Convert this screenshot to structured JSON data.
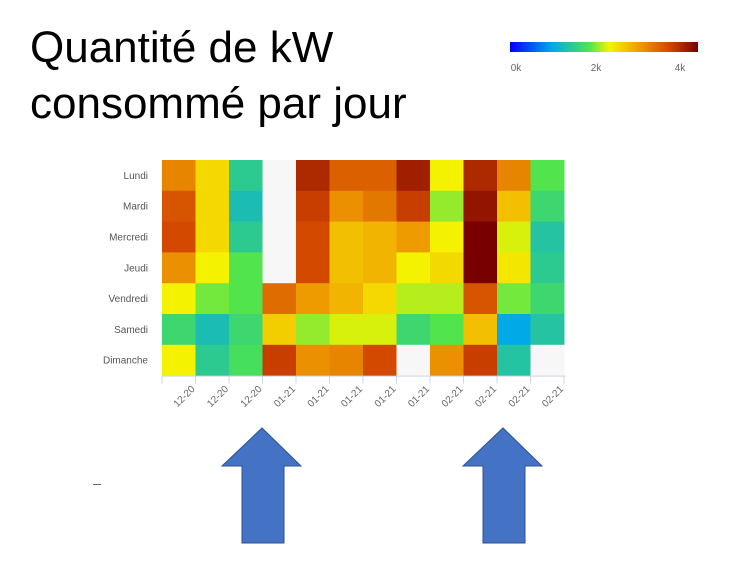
{
  "title": {
    "line1": "Quantité de kW",
    "line2": "consommé par jour"
  },
  "legend": {
    "labels": [
      "0k",
      "2k",
      "4k"
    ],
    "min": 0,
    "max": 4500
  },
  "colors": {
    "arrow_fill": "#4472c4",
    "arrow_stroke": "#2f528f",
    "empty_cell": "#f7f7f7"
  },
  "chart_data": {
    "type": "heatmap",
    "title": "Quantité de kW consommé par jour",
    "rows": [
      "Lundi",
      "Mardi",
      "Mercredi",
      "Jeudi",
      "Vendredi",
      "Samedi",
      "Dimanche"
    ],
    "columns": [
      "12-20",
      "12-20",
      "12-20",
      "01-21",
      "01-21",
      "01-21",
      "01-21",
      "01-21",
      "02-21",
      "02-21",
      "02-21",
      "02-21"
    ],
    "unit": "kW",
    "color_range": [
      0,
      4500
    ],
    "values": [
      [
        3300,
        2600,
        1500,
        null,
        4100,
        3600,
        3600,
        4200,
        2400,
        4100,
        3300,
        1900
      ],
      [
        3700,
        2600,
        1300,
        null,
        3900,
        3200,
        3400,
        3900,
        2100,
        4300,
        2800,
        1700
      ],
      [
        3800,
        2600,
        1500,
        null,
        3800,
        2800,
        2900,
        3100,
        2400,
        4500,
        2300,
        1400
      ],
      [
        3200,
        2400,
        1900,
        null,
        3800,
        2800,
        2900,
        2400,
        2600,
        4500,
        2500,
        1500
      ],
      [
        2400,
        2000,
        1900,
        3500,
        3100,
        2900,
        2600,
        2200,
        2200,
        3700,
        2000,
        1700
      ],
      [
        1700,
        1300,
        1700,
        2700,
        2100,
        2300,
        2300,
        1700,
        1900,
        2800,
        1000,
        1400
      ],
      [
        2400,
        1500,
        1800,
        3900,
        3200,
        3300,
        3800,
        null,
        3200,
        3900,
        1400,
        null
      ]
    ],
    "annotations": [
      "arrow under column 4 (01-21)",
      "arrow under column 11 (02-21)"
    ]
  }
}
